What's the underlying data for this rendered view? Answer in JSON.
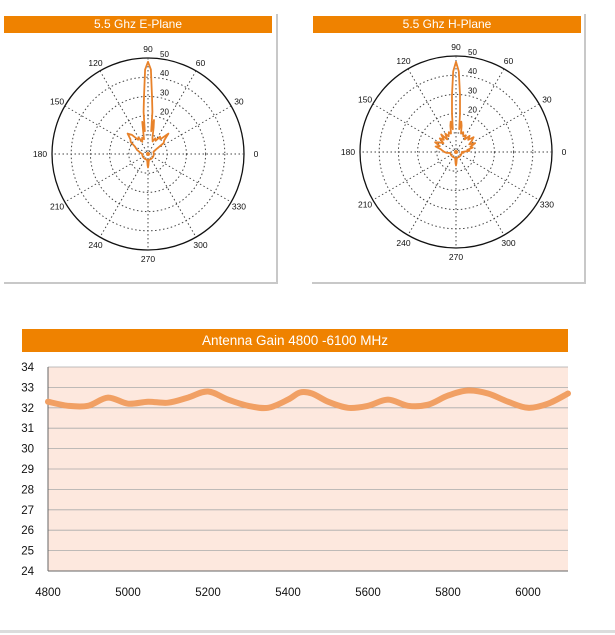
{
  "chart_data": [
    {
      "type": "polar",
      "title": "5.5 Ghz E-Plane",
      "angle_labels": [
        "0",
        "30",
        "60",
        "90",
        "120",
        "150",
        "180",
        "210",
        "240",
        "270",
        "300",
        "330"
      ],
      "radial_labels": [
        "20",
        "30",
        "40",
        "50"
      ],
      "radial_range": [
        0,
        50
      ],
      "grid": true,
      "series": [
        {
          "color": "#e8822a",
          "theta": [
            0,
            10,
            20,
            30,
            35,
            40,
            45,
            50,
            55,
            60,
            65,
            70,
            75,
            78,
            80,
            82,
            84,
            86,
            88,
            90,
            92,
            94,
            96,
            98,
            100,
            102,
            105,
            110,
            115,
            120,
            125,
            130,
            135,
            140,
            145,
            150,
            160,
            170,
            180,
            190,
            200,
            210,
            220,
            230,
            240,
            250,
            260,
            265,
            268,
            270,
            272,
            275,
            280,
            290,
            300,
            310,
            320,
            330,
            340,
            350,
            360
          ],
          "r": [
            3,
            3,
            3,
            5,
            10,
            11,
            15,
            10,
            11,
            8,
            9,
            7,
            9,
            14,
            18,
            12,
            22,
            30,
            44,
            48,
            44,
            30,
            22,
            12,
            17,
            12,
            8,
            9,
            7,
            10,
            9,
            13,
            15,
            12,
            11,
            8,
            6,
            4,
            3,
            3,
            3,
            3,
            3,
            3,
            3,
            3,
            3,
            4,
            6,
            7,
            6,
            4,
            3,
            3,
            3,
            3,
            3,
            3,
            3,
            3,
            3
          ]
        }
      ]
    },
    {
      "type": "polar",
      "title": "5.5  Ghz H-Plane",
      "angle_labels": [
        "0",
        "30",
        "60",
        "90",
        "120",
        "150",
        "180",
        "210",
        "240",
        "270",
        "300",
        "330"
      ],
      "radial_labels": [
        "20",
        "30",
        "40",
        "50"
      ],
      "radial_range": [
        0,
        50
      ],
      "grid": true,
      "series": [
        {
          "color": "#e8822a",
          "theta": [
            0,
            5,
            10,
            15,
            20,
            25,
            30,
            35,
            40,
            45,
            50,
            55,
            60,
            65,
            70,
            75,
            78,
            80,
            82,
            84,
            86,
            88,
            90,
            92,
            94,
            96,
            98,
            100,
            102,
            105,
            110,
            115,
            120,
            125,
            130,
            135,
            140,
            145,
            150,
            155,
            160,
            165,
            170,
            175,
            180,
            185,
            190,
            200,
            210,
            220,
            230,
            240,
            250,
            260,
            265,
            268,
            270,
            272,
            275,
            280,
            290,
            300,
            310,
            320,
            330,
            340,
            350,
            355,
            360
          ],
          "r": [
            3,
            7,
            6,
            9,
            8,
            11,
            8,
            10,
            12,
            9,
            11,
            8,
            10,
            9,
            11,
            10,
            14,
            16,
            12,
            20,
            30,
            42,
            47,
            42,
            30,
            20,
            12,
            16,
            14,
            10,
            11,
            9,
            11,
            8,
            12,
            9,
            11,
            8,
            10,
            12,
            9,
            11,
            8,
            7,
            6,
            5,
            3,
            3,
            3,
            3,
            3,
            3,
            3,
            3,
            4,
            6,
            7,
            6,
            4,
            3,
            3,
            3,
            3,
            3,
            3,
            3,
            3,
            4,
            3
          ]
        }
      ]
    },
    {
      "type": "line",
      "title": "Antenna Gain   4800 -6100  MHz",
      "xlim": [
        4800,
        6100
      ],
      "ylim": [
        24,
        34
      ],
      "x_ticks": [
        4800,
        5000,
        5200,
        5400,
        5600,
        5800,
        6000
      ],
      "y_ticks": [
        24,
        25,
        26,
        27,
        28,
        29,
        30,
        31,
        32,
        33,
        34
      ],
      "grid": true,
      "background": "#fde8de",
      "series": [
        {
          "color": "#f1a064",
          "x": [
            4800,
            4850,
            4900,
            4950,
            5000,
            5050,
            5100,
            5150,
            5200,
            5250,
            5300,
            5350,
            5400,
            5430,
            5460,
            5500,
            5550,
            5600,
            5650,
            5700,
            5750,
            5800,
            5850,
            5900,
            5950,
            6000,
            6050,
            6100
          ],
          "y": [
            32.3,
            32.1,
            32.1,
            32.5,
            32.2,
            32.3,
            32.25,
            32.5,
            32.8,
            32.4,
            32.1,
            32.0,
            32.4,
            32.75,
            32.7,
            32.3,
            32.0,
            32.1,
            32.4,
            32.1,
            32.15,
            32.6,
            32.85,
            32.7,
            32.3,
            32.0,
            32.2,
            32.7
          ]
        }
      ]
    }
  ]
}
